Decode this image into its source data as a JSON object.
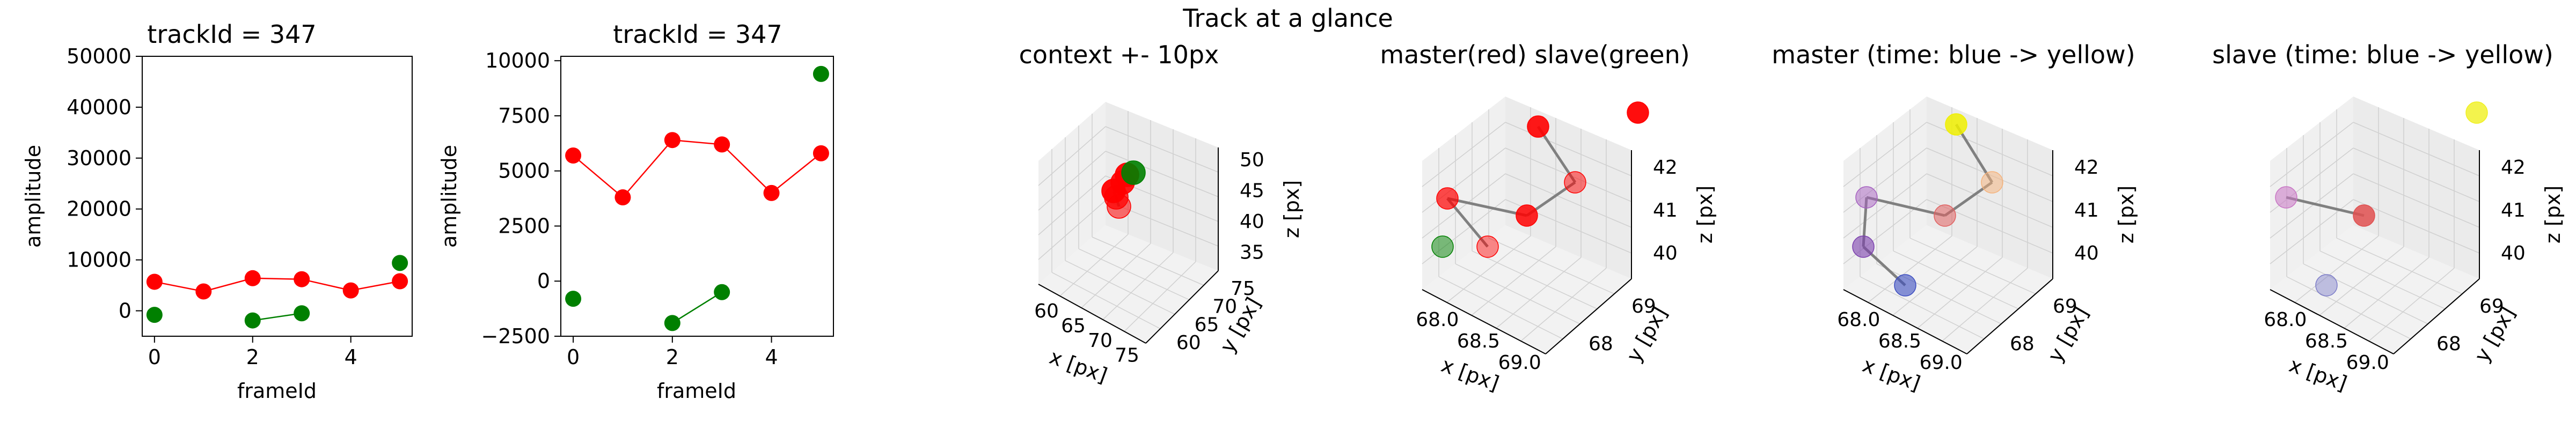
{
  "figure": {
    "suptitle": "Track at a glance"
  },
  "chart_data": [
    {
      "type": "line",
      "title": "trackId = 347",
      "xlabel": "frameId",
      "ylabel": "amplitude",
      "xlim": [
        -0.25,
        5.25
      ],
      "ylim": [
        -5000,
        50000
      ],
      "xticks": [
        0,
        2,
        4
      ],
      "xtick_labels": [
        "0",
        "2",
        "4"
      ],
      "yticks": [
        0,
        10000,
        20000,
        30000,
        40000,
        50000
      ],
      "ytick_labels": [
        "0",
        "10000",
        "20000",
        "30000",
        "40000",
        "50000"
      ],
      "series": [
        {
          "color": "#ff0000",
          "x": [
            0,
            1,
            2,
            3,
            4,
            5
          ],
          "y": [
            5700,
            3800,
            6400,
            6200,
            4000,
            5800
          ]
        },
        {
          "color": "#008000",
          "x": [
            0,
            2,
            3,
            5
          ],
          "y": [
            -800,
            -1900,
            -500,
            9400
          ],
          "line_segments": [
            [
              2,
              3
            ]
          ]
        }
      ]
    },
    {
      "type": "line",
      "title": "trackId = 347",
      "xlabel": "frameId",
      "ylabel": "amplitude",
      "xlim": [
        -0.25,
        5.25
      ],
      "ylim": [
        -2500,
        10200
      ],
      "xticks": [
        0,
        2,
        4
      ],
      "xtick_labels": [
        "0",
        "2",
        "4"
      ],
      "yticks": [
        -2500,
        0,
        2500,
        5000,
        7500,
        10000
      ],
      "ytick_labels": [
        "−2500",
        "0",
        "2500",
        "5000",
        "7500",
        "10000"
      ],
      "series": [
        {
          "color": "#ff0000",
          "x": [
            0,
            1,
            2,
            3,
            4,
            5
          ],
          "y": [
            5700,
            3800,
            6400,
            6200,
            4000,
            5800
          ]
        },
        {
          "color": "#008000",
          "x": [
            0,
            2,
            3,
            5
          ],
          "y": [
            -800,
            -1900,
            -500,
            9400
          ],
          "line_segments": [
            [
              2,
              3
            ]
          ]
        }
      ]
    },
    {
      "type": "scatter",
      "title": "context +- 10px",
      "xlabel": "x [px]",
      "ylabel": "y [px]",
      "zlabel": "z [px]",
      "xtick_labels": [
        "60",
        "65",
        "70",
        "75"
      ],
      "ytick_labels": [
        "60",
        "65",
        "70",
        "75"
      ],
      "ztick_labels": [
        "35",
        "40",
        "45",
        "50"
      ],
      "points": [
        {
          "color": "#ff0000"
        },
        {
          "color": "#ff0000"
        },
        {
          "color": "#ff0000"
        },
        {
          "color": "#ff0000"
        },
        {
          "color": "#ff0000"
        },
        {
          "color": "#008000"
        }
      ]
    },
    {
      "type": "scatter",
      "title": "master(red) slave(green)",
      "xlabel": "x [px]",
      "ylabel": "y [px]",
      "zlabel": "z [px]",
      "xtick_labels": [
        "68.0",
        "68.5",
        "69.0"
      ],
      "ytick_labels": [
        "68",
        "69"
      ],
      "ztick_labels": [
        "40",
        "41",
        "42"
      ],
      "points": [
        {
          "color": "#ff0000"
        },
        {
          "color": "#ff0000"
        },
        {
          "color": "#ff0000"
        },
        {
          "color": "#ff0000"
        },
        {
          "color": "#ff0000"
        },
        {
          "color": "#ff0000"
        },
        {
          "color": "#008000"
        }
      ]
    },
    {
      "type": "scatter",
      "title": "master (time: blue -> yellow)",
      "xlabel": "x [px]",
      "ylabel": "y [px]",
      "zlabel": "z [px]",
      "xtick_labels": [
        "68.0",
        "68.5",
        "69.0"
      ],
      "ytick_labels": [
        "68",
        "69"
      ],
      "ztick_labels": [
        "40",
        "41",
        "42"
      ],
      "points": [
        {
          "color": "#3b4cc0"
        },
        {
          "color": "#7b3fae"
        },
        {
          "color": "#a55fc0"
        },
        {
          "color": "#e06060"
        },
        {
          "color": "#f5b27a"
        },
        {
          "color": "#f0f000"
        }
      ]
    },
    {
      "type": "scatter",
      "title": "slave (time: blue -> yellow)",
      "xlabel": "x [px]",
      "ylabel": "y [px]",
      "zlabel": "z [px]",
      "xtick_labels": [
        "68.0",
        "68.5",
        "69.0"
      ],
      "ytick_labels": [
        "68",
        "69"
      ],
      "ztick_labels": [
        "40",
        "41",
        "42"
      ],
      "points": [
        {
          "color": "#7c7cc8"
        },
        {
          "color": "#c875c4"
        },
        {
          "color": "#e05050"
        },
        {
          "color": "#f0f020"
        }
      ]
    }
  ]
}
